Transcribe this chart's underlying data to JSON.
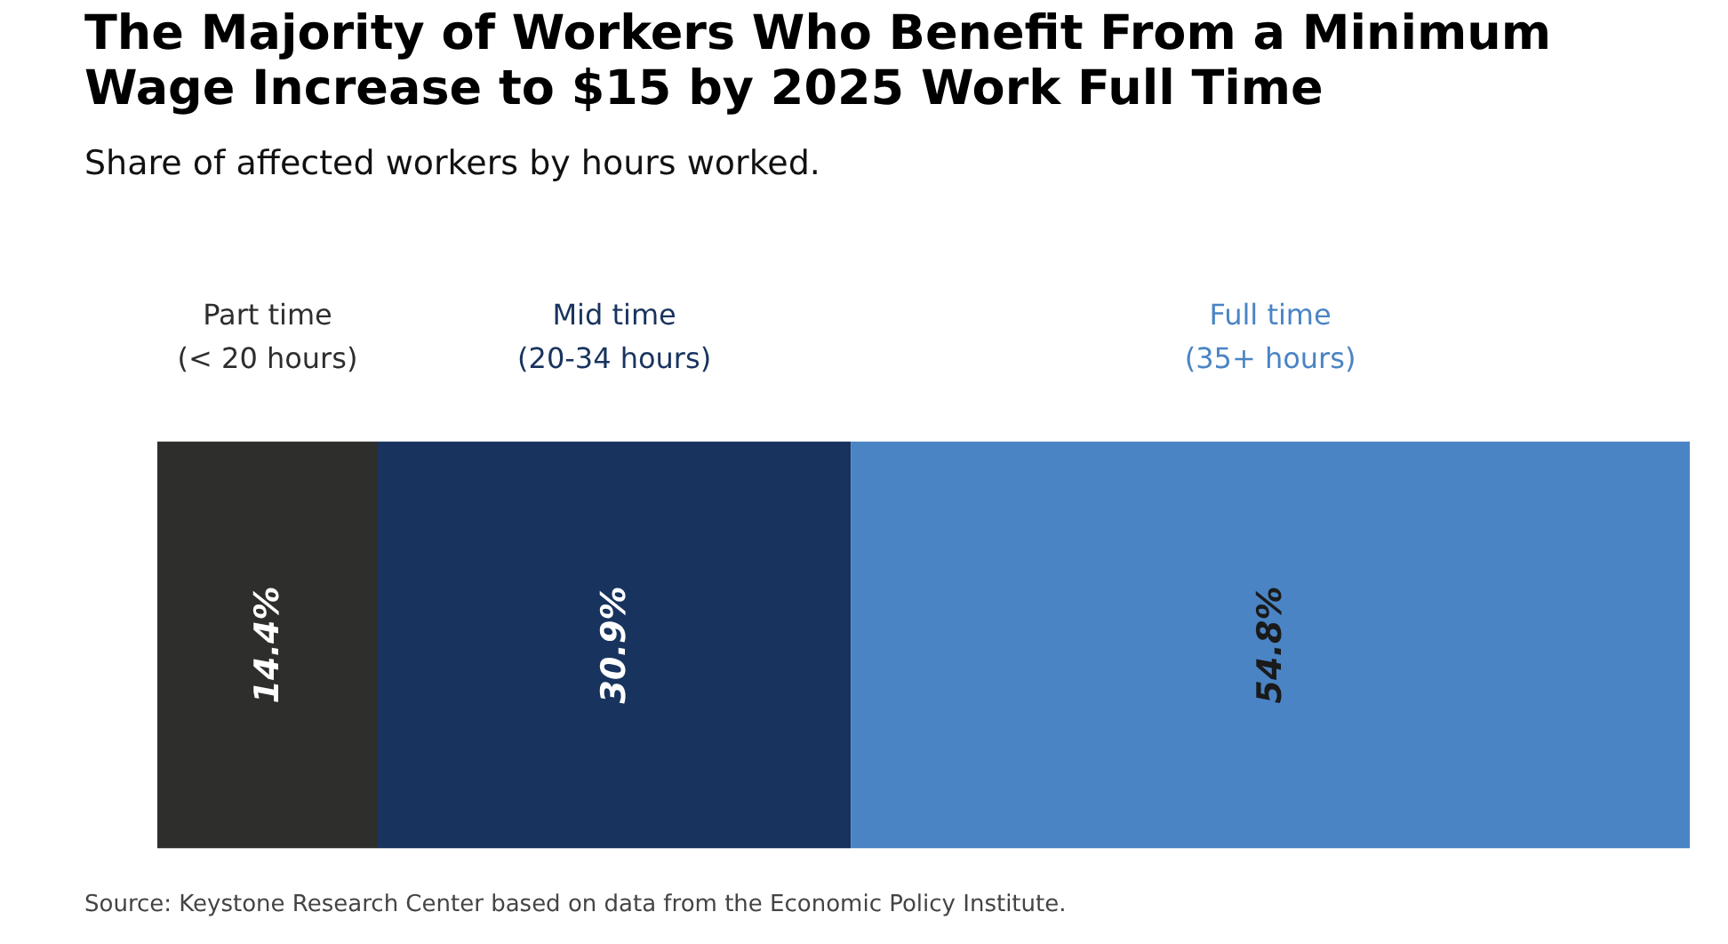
{
  "chart_data": {
    "type": "bar",
    "title": "The Majority of Workers Who Benefit From a Minimum\nWage Increase to $15 by 2025 Work Full Time",
    "subtitle": "Share of affected workers by hours worked.",
    "orientation": "horizontal",
    "stacked": true,
    "categories": [
      null
    ],
    "xlim": [
      0,
      100.1
    ],
    "tick_labels": false,
    "grid": false,
    "series": [
      {
        "name": "Part time\n(< 20 hours)",
        "color": "#2e2e2c",
        "values": [
          14.4
        ],
        "value_labels": [
          "14.4%"
        ]
      },
      {
        "name": "Mid time\n(20-34 hours)",
        "color": "#18335e",
        "values": [
          30.9
        ],
        "value_labels": [
          "30.9%"
        ]
      },
      {
        "name": "Full time\n(35+ hours)",
        "color": "#4a84c4",
        "values": [
          54.8
        ],
        "value_labels": [
          "54.8%"
        ]
      }
    ],
    "annotations": [
      "Source: Keystone Research Center based on data from the Economic Policy Institute."
    ]
  }
}
